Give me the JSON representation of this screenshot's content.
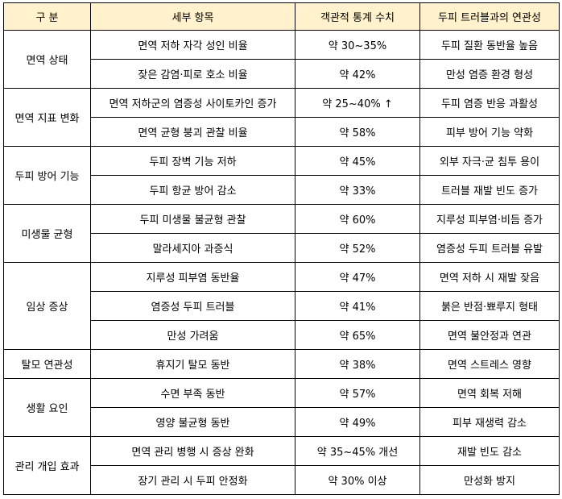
{
  "table": {
    "headers": [
      "구  분",
      "세부 항목",
      "객관적 통계 수치",
      "두피 트러블과의 연관성"
    ],
    "groups": [
      {
        "category": "면역 상태",
        "rows": [
          {
            "item": "면역 저하 자각 성인 비율",
            "stat": "약 30~35%",
            "relation": "두피 질환 동반율 높음"
          },
          {
            "item": "잦은 감염·피로 호소 비율",
            "stat": "약 42%",
            "relation": "만성 염증 환경 형성"
          }
        ]
      },
      {
        "category": "면역 지표 변화",
        "rows": [
          {
            "item": "면역 저하군의 염증성 사이토카인 증가",
            "stat": "약 25~40% ↑",
            "relation": "두피 염증 반응 과활성"
          },
          {
            "item": "면역 균형 붕괴 관찰 비율",
            "stat": "약 58%",
            "relation": "피부 방어 기능 약화"
          }
        ]
      },
      {
        "category": "두피 방어 기능",
        "rows": [
          {
            "item": "두피 장벽 기능 저하",
            "stat": "약 45%",
            "relation": "외부 자극·균 침투 용이"
          },
          {
            "item": "두피 항균 방어 감소",
            "stat": "약 33%",
            "relation": "트러블 재발 빈도 증가"
          }
        ]
      },
      {
        "category": "미생물 균형",
        "rows": [
          {
            "item": "두피 미생물 불균형 관찰",
            "stat": "약 60%",
            "relation": "지루성 피부염·비듬 증가"
          },
          {
            "item": "말라세지아 과증식",
            "stat": "약 52%",
            "relation": "염증성 두피 트러블 유발"
          }
        ]
      },
      {
        "category": "임상 증상",
        "rows": [
          {
            "item": "지루성 피부염 동반율",
            "stat": "약 47%",
            "relation": "면역 저하 시 재발 잦음"
          },
          {
            "item": "염증성 두피 트러블",
            "stat": "약 41%",
            "relation": "붉은 반점·뾰루지 형태"
          },
          {
            "item": "만성 가려움",
            "stat": "약 65%",
            "relation": "면역 불안정과 연관"
          }
        ]
      },
      {
        "category": "탈모 연관성",
        "rows": [
          {
            "item": "휴지기 탈모 동반",
            "stat": "약 38%",
            "relation": "면역 스트레스 영향"
          }
        ]
      },
      {
        "category": "생활 요인",
        "rows": [
          {
            "item": "수면 부족 동반",
            "stat": "약 57%",
            "relation": "면역 회복 저해"
          },
          {
            "item": "영양 불균형 동반",
            "stat": "약 49%",
            "relation": "피부 재생력 감소"
          }
        ]
      },
      {
        "category": "관리 개입 효과",
        "rows": [
          {
            "item": "면역 관리 병행 시 증상 완화",
            "stat": "약 35~45% 개선",
            "relation": "재발 빈도 감소"
          },
          {
            "item": "장기 관리 시 두피 안정화",
            "stat": "약 30% 이상",
            "relation": "만성화 방지"
          }
        ]
      }
    ]
  }
}
